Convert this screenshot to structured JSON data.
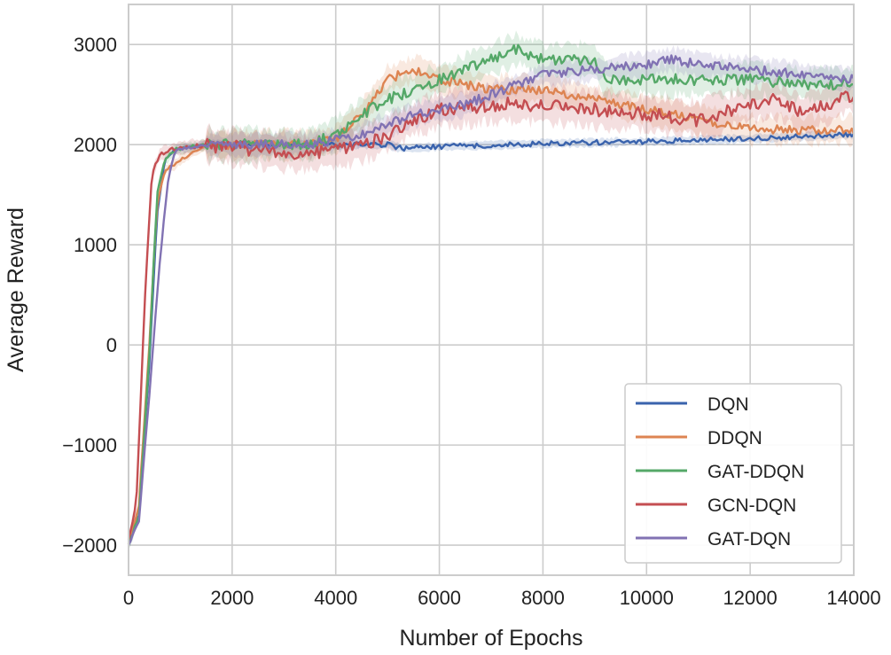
{
  "chart_data": {
    "type": "line",
    "title": "",
    "xlabel": "Number of Epochs",
    "ylabel": "Average Reward",
    "xlim": [
      0,
      14000
    ],
    "ylim": [
      -2300,
      3400
    ],
    "xticks": [
      0,
      2000,
      4000,
      6000,
      8000,
      10000,
      12000,
      14000
    ],
    "xtick_labels": [
      "0",
      "2000",
      "4000",
      "6000",
      "8000",
      "10000",
      "12000",
      "14000"
    ],
    "yticks": [
      -2000,
      -1000,
      0,
      1000,
      2000,
      3000
    ],
    "ytick_labels": [
      "−2000",
      "−1000",
      "0",
      "1000",
      "2000",
      "3000"
    ],
    "grid": true,
    "legend_position": "bottom-right",
    "series": [
      {
        "name": "DQN",
        "color": "#3a63ad",
        "x": [
          0,
          200,
          400,
          550,
          700,
          900,
          1500,
          2500,
          3500,
          4500,
          5000,
          5300,
          6000,
          8000,
          10000,
          12000,
          14000
        ],
        "y": [
          -2000,
          -1700,
          -200,
          1300,
          1850,
          1950,
          2000,
          2000,
          2000,
          2000,
          2000,
          1960,
          1980,
          2010,
          2030,
          2060,
          2100
        ]
      },
      {
        "name": "DDQN",
        "color": "#dd8452",
        "x": [
          0,
          200,
          400,
          550,
          700,
          900,
          1000,
          1500,
          2500,
          3500,
          4000,
          4500,
          5000,
          5500,
          6000,
          7000,
          8000,
          9000,
          10000,
          11000,
          12000,
          13000,
          14000
        ],
        "y": [
          -2000,
          -1600,
          0,
          1400,
          1750,
          1800,
          1850,
          2000,
          2000,
          2000,
          2050,
          2300,
          2650,
          2750,
          2650,
          2550,
          2550,
          2450,
          2350,
          2250,
          2150,
          2150,
          2150
        ]
      },
      {
        "name": "GAT-DDQN",
        "color": "#55a868",
        "x": [
          0,
          200,
          400,
          550,
          700,
          900,
          1500,
          2500,
          3500,
          4000,
          4500,
          5000,
          5500,
          6000,
          6500,
          7000,
          7500,
          8000,
          8500,
          9000,
          9200,
          10000,
          11000,
          12000,
          13000,
          14000
        ],
        "y": [
          -2000,
          -1700,
          -100,
          1500,
          1850,
          1950,
          2000,
          2000,
          2000,
          2100,
          2300,
          2450,
          2550,
          2650,
          2750,
          2850,
          2950,
          2850,
          2850,
          2850,
          2650,
          2650,
          2650,
          2650,
          2600,
          2600
        ]
      },
      {
        "name": "GCN-DQN",
        "color": "#c44e52",
        "x": [
          0,
          150,
          300,
          450,
          600,
          800,
          1500,
          2500,
          3500,
          4000,
          4500,
          5000,
          5500,
          6000,
          7000,
          8000,
          9000,
          10000,
          11000,
          12000,
          12500,
          13000,
          14000
        ],
        "y": [
          -1950,
          -1600,
          300,
          1700,
          1900,
          1950,
          2000,
          1950,
          1900,
          1950,
          2000,
          2100,
          2250,
          2350,
          2400,
          2400,
          2350,
          2300,
          2250,
          2400,
          2450,
          2300,
          2500
        ]
      },
      {
        "name": "GAT-DQN",
        "color": "#8172b3",
        "x": [
          0,
          200,
          400,
          600,
          750,
          900,
          1500,
          2500,
          3500,
          4000,
          4500,
          5000,
          5500,
          6000,
          6500,
          7000,
          7500,
          8000,
          9000,
          10000,
          10500,
          11000,
          12000,
          13000,
          14000
        ],
        "y": [
          -2000,
          -1750,
          -500,
          800,
          1600,
          1950,
          2000,
          2000,
          2000,
          2050,
          2100,
          2200,
          2300,
          2350,
          2400,
          2500,
          2600,
          2700,
          2750,
          2800,
          2850,
          2800,
          2750,
          2700,
          2650
        ]
      }
    ]
  }
}
